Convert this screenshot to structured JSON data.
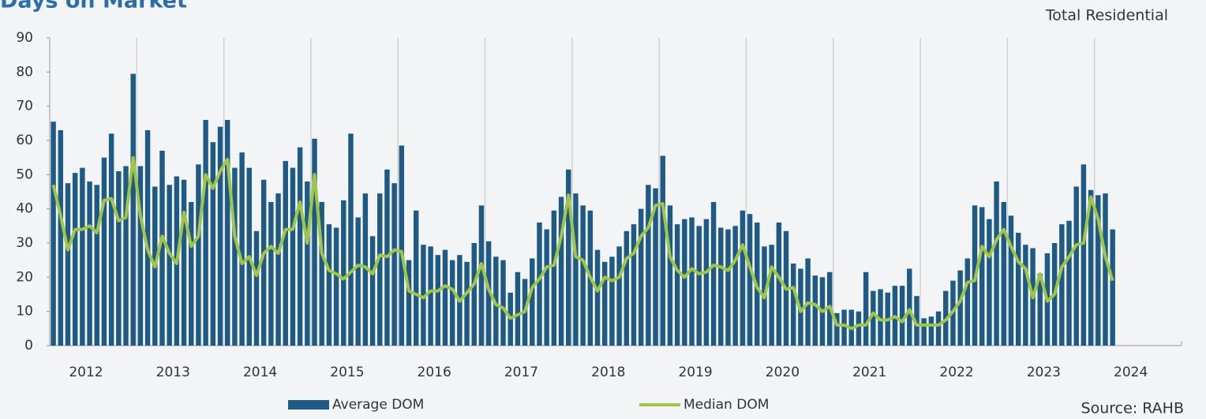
{
  "chart_data": {
    "type": "bar_line",
    "title": "Days on Market",
    "subtitle": "Total Residential",
    "source": "Source: RAHB",
    "categories": [
      "2012",
      null,
      null,
      null,
      null,
      null,
      null,
      null,
      null,
      null,
      null,
      null,
      "2013",
      null,
      null,
      null,
      null,
      null,
      null,
      null,
      null,
      null,
      null,
      null,
      "2014",
      null,
      null,
      null,
      null,
      null,
      null,
      null,
      null,
      null,
      null,
      null,
      "2015",
      null,
      null,
      null,
      null,
      null,
      null,
      null,
      null,
      null,
      null,
      null,
      "2016",
      null,
      null,
      null,
      null,
      null,
      null,
      null,
      null,
      null,
      null,
      null,
      "2017",
      null,
      null,
      null,
      null,
      null,
      null,
      null,
      null,
      null,
      null,
      null,
      "2018",
      null,
      null,
      null,
      null,
      null,
      null,
      null,
      null,
      null,
      null,
      null,
      "2019",
      null,
      null,
      null,
      null,
      null,
      null,
      null,
      null,
      null,
      null,
      null,
      "2020",
      null,
      null,
      null,
      null,
      null,
      null,
      null,
      null,
      null,
      null,
      null,
      "2021",
      null,
      null,
      null,
      null,
      null,
      null,
      null,
      null,
      null,
      null,
      null,
      "2022",
      null,
      null,
      null,
      null,
      null,
      null,
      null,
      null,
      null,
      null,
      null,
      "2023",
      null,
      null,
      null,
      null,
      null,
      null,
      null,
      null,
      null,
      null,
      null,
      "2024",
      null,
      null
    ],
    "series": [
      {
        "name": "Average DOM",
        "type": "bar",
        "color": "#1f5a85",
        "values": [
          65.5,
          63,
          47.5,
          50.5,
          52,
          48,
          47,
          55,
          62,
          51,
          52.5,
          79.5,
          52.5,
          63,
          46.5,
          57,
          47,
          49.5,
          48.5,
          42,
          53,
          66,
          59.5,
          64,
          66,
          52,
          56.5,
          52,
          33.5,
          48.5,
          42,
          44.5,
          54,
          52,
          58,
          48,
          60.5,
          42,
          35.5,
          34.5,
          42.5,
          62,
          37.5,
          44.5,
          32,
          44.5,
          51.5,
          47.5,
          58.5,
          25,
          39.5,
          29.5,
          29,
          26.5,
          28,
          25,
          26.5,
          24.5,
          30,
          41,
          30.5,
          26,
          25,
          15.5,
          21.5,
          19.5,
          25.5,
          36,
          34,
          39.5,
          43.5,
          51.5,
          44.5,
          41,
          39.5,
          28,
          24.5,
          26,
          29,
          33.5,
          35.5,
          40,
          47,
          46,
          55.5,
          41,
          35.5,
          37,
          37.5,
          35,
          37,
          42,
          34.5,
          34,
          35,
          39.5,
          38.5,
          36,
          29,
          29.5,
          36,
          33.5,
          24,
          22.5,
          25.5,
          20.5,
          20,
          21.5,
          9.5,
          10.5,
          10.5,
          10,
          21.5,
          16,
          16.5,
          15.5,
          17.5,
          17.5,
          22.5,
          14.5,
          8,
          8.5,
          10,
          16,
          19,
          22,
          25.5,
          41,
          40.5,
          37,
          48,
          42,
          38,
          33,
          29.5,
          28.5,
          21,
          27,
          30,
          35.5,
          36.5,
          46.5,
          53,
          45.5,
          44,
          44.5,
          34
        ]
      },
      {
        "name": "Median DOM",
        "type": "line",
        "color": "#9ec64a",
        "values": [
          47,
          38,
          28,
          34,
          34,
          35,
          33,
          42.5,
          43,
          36.5,
          37.5,
          55,
          38,
          28,
          23,
          32,
          27,
          24,
          39,
          29,
          32,
          50,
          46,
          51,
          54.5,
          32,
          24,
          26,
          20.5,
          27,
          29,
          27,
          34,
          34,
          42,
          30,
          50,
          27,
          22,
          21,
          19.5,
          21.5,
          23.5,
          23,
          21,
          26.5,
          26,
          28,
          27.5,
          16,
          15,
          14,
          16,
          16,
          17.5,
          16.5,
          13,
          15.5,
          18,
          24,
          16.5,
          12,
          11,
          8,
          9,
          10,
          17,
          19.5,
          23,
          23.5,
          32,
          44,
          26,
          25,
          20,
          16,
          20,
          19,
          20,
          25.5,
          27,
          32,
          34.5,
          41,
          41.5,
          26,
          22,
          20,
          22.5,
          21,
          21.5,
          23.5,
          23,
          22,
          25,
          29.5,
          23,
          17,
          14,
          23,
          20,
          16.5,
          17,
          10,
          12.5,
          12,
          10,
          11.5,
          6,
          6,
          5,
          6,
          6,
          9.5,
          7.5,
          7.5,
          8.5,
          7,
          10.5,
          6,
          6,
          6,
          6,
          7.5,
          10,
          13,
          18.5,
          19,
          29,
          26,
          31,
          34,
          29,
          24.5,
          22.5,
          14,
          21,
          13,
          15,
          23,
          26,
          29.5,
          30,
          43.5,
          37,
          26,
          19
        ]
      }
    ],
    "ylim": [
      0,
      90
    ],
    "yticks": [
      0,
      10,
      20,
      30,
      40,
      50,
      60,
      70,
      80,
      90
    ],
    "legend": "bottom"
  }
}
